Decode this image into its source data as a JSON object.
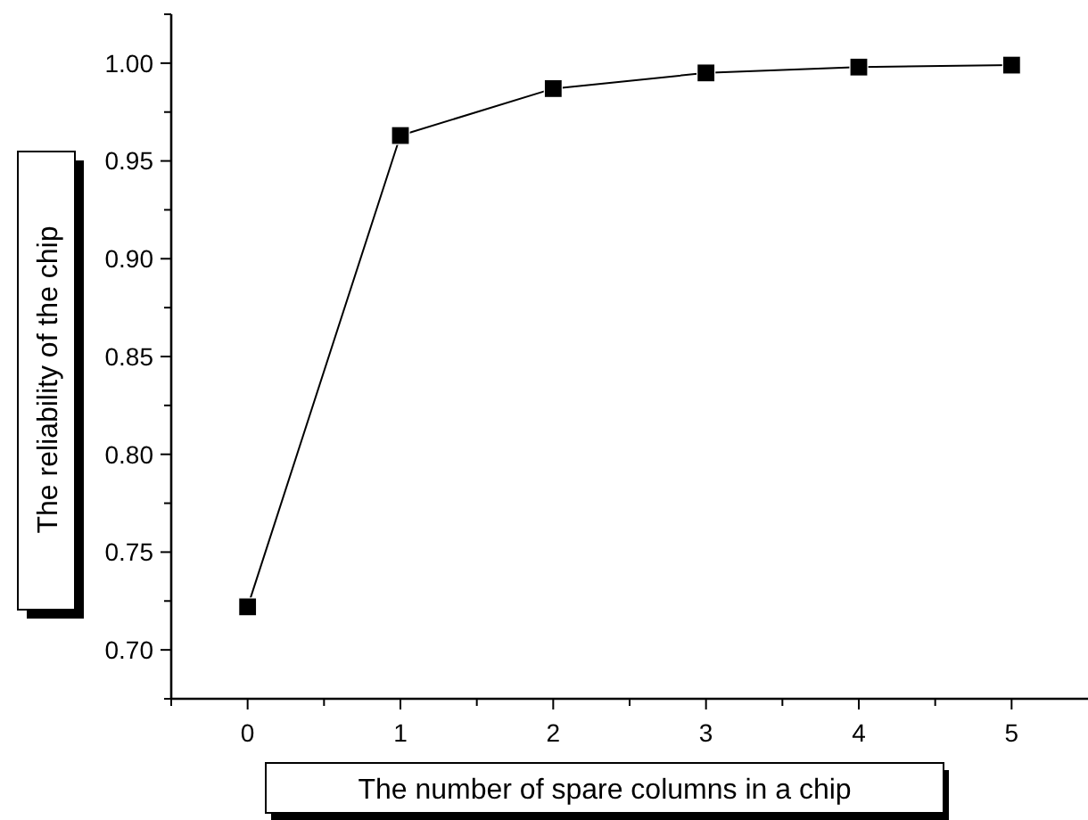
{
  "chart_data": {
    "type": "line",
    "xlabel": "The number of spare columns in a chip",
    "ylabel": "The reliability of the chip",
    "x": [
      0,
      1,
      2,
      3,
      4,
      5
    ],
    "series": [
      {
        "color": "#000000",
        "values": [
          0.722,
          0.963,
          0.987,
          0.995,
          0.998,
          0.999
        ]
      }
    ],
    "xlim": [
      -0.5,
      5.5
    ],
    "ylim": [
      0.675,
      1.025
    ],
    "xticks": [
      {
        "value": -0.5,
        "label": null
      },
      0,
      {
        "value": 0.5,
        "label": null
      },
      1,
      {
        "value": 1.5,
        "label": null
      },
      2,
      {
        "value": 2.5,
        "label": null
      },
      3,
      {
        "value": 3.5,
        "label": null
      },
      4,
      {
        "value": 4.5,
        "label": null
      },
      5
    ],
    "yticks": [
      {
        "value": 0.675,
        "label": null
      },
      {
        "value": 0.7,
        "label": "0.70"
      },
      {
        "value": 0.725,
        "label": null
      },
      {
        "value": 0.75,
        "label": "0.75"
      },
      {
        "value": 0.775,
        "label": null
      },
      {
        "value": 0.8,
        "label": "0.80"
      },
      {
        "value": 0.825,
        "label": null
      },
      {
        "value": 0.85,
        "label": "0.85"
      },
      {
        "value": 0.875,
        "label": null
      },
      {
        "value": 0.9,
        "label": "0.90"
      },
      {
        "value": 0.925,
        "label": null
      },
      {
        "value": 0.95,
        "label": "0.95"
      },
      {
        "value": 0.975,
        "label": null
      },
      {
        "value": 1.0,
        "label": "1.00"
      },
      {
        "value": 1.025,
        "label": null
      }
    ],
    "marker": "square",
    "line_style": "solid",
    "grid": false
  }
}
